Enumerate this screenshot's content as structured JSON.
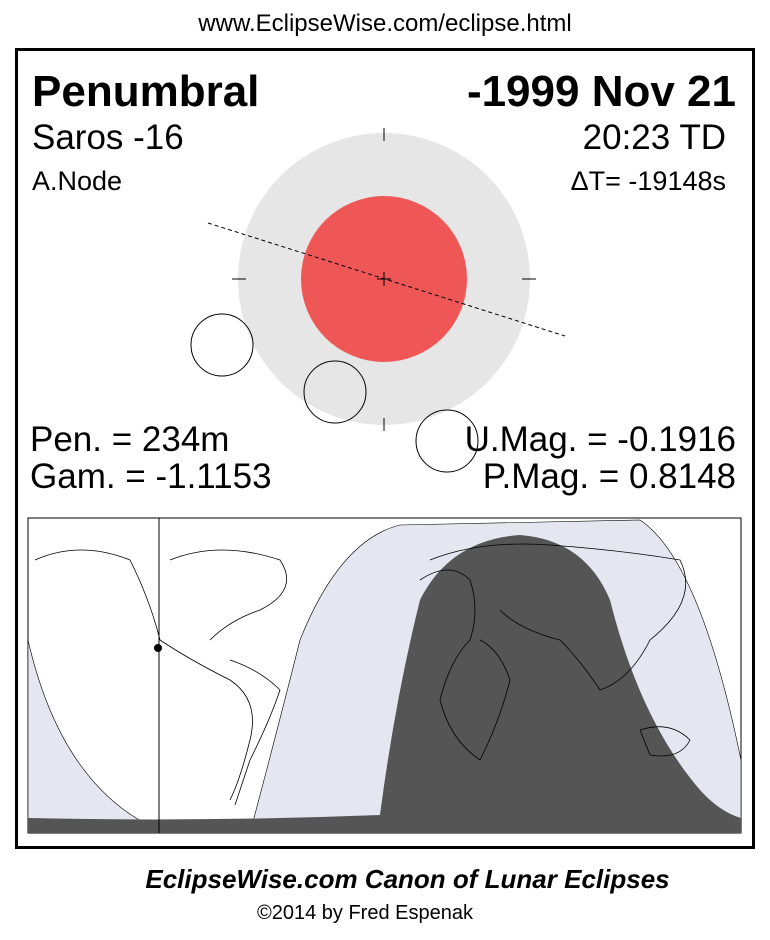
{
  "url": "www.EclipseWise.com/eclipse.html",
  "eclipse_type": "Penumbral",
  "date": "-1999 Nov 21",
  "saros": "Saros -16",
  "time": "20:23 TD",
  "node": "A.Node",
  "delta_t": "ΔT= -19148s",
  "pen_duration": "Pen. = 234m",
  "gamma": "Gam. = -1.1153",
  "umbral_mag": "U.Mag. = -0.1916",
  "penumbral_mag": "P.Mag. = 0.8148",
  "footer_title": "EclipseWise.com Canon of Lunar Eclipses",
  "footer_copyright": "©2014 by Fred Espenak",
  "colors": {
    "umbra": "#ef5656",
    "penumbra": "#e6e6e6",
    "map_penumbral_zone": "#e6e6f0",
    "map_total_visibility": "#555555"
  }
}
